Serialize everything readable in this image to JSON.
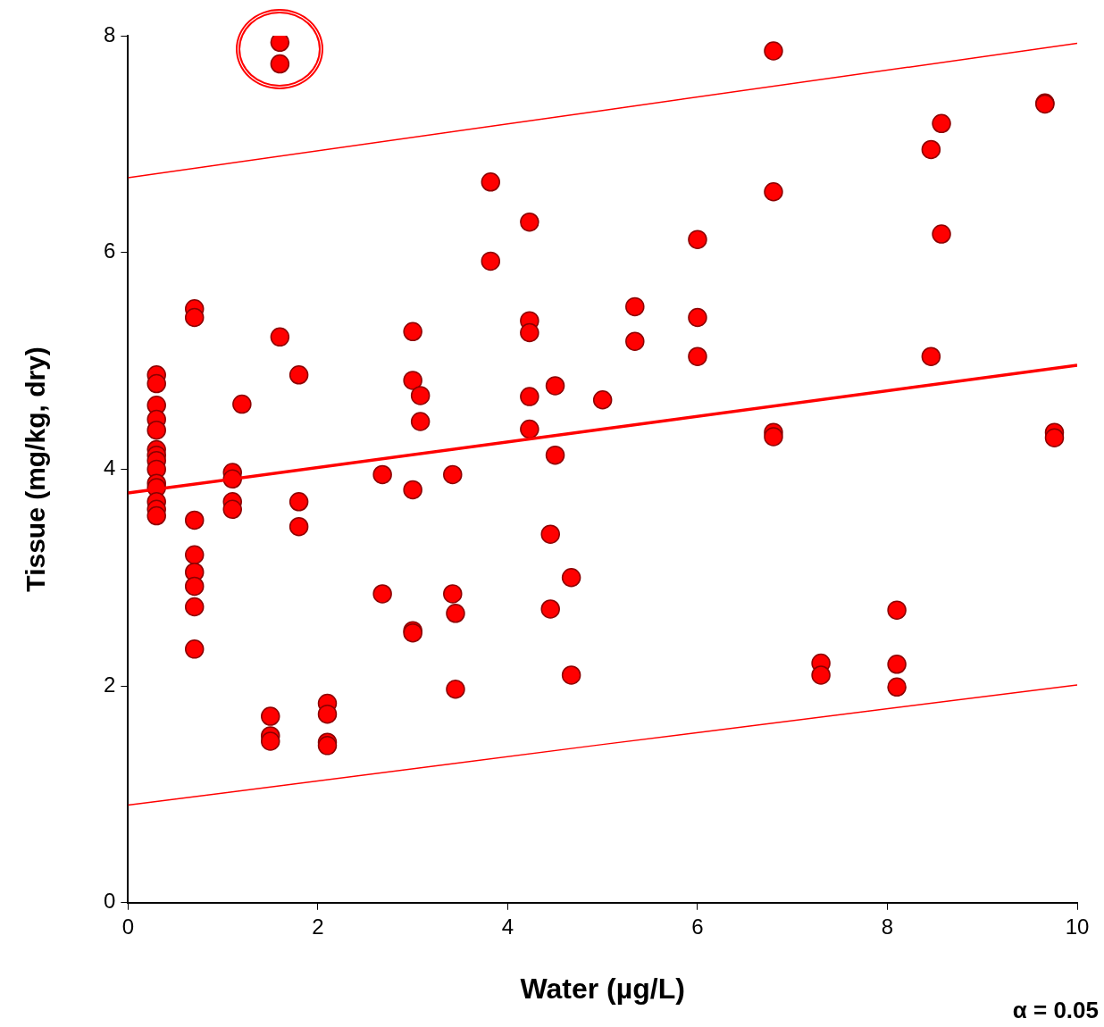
{
  "chart_data": {
    "type": "scatter",
    "xlabel": "Water (µg/L)",
    "ylabel": "Tissue (mg/kg, dry)",
    "xlim": [
      0,
      10
    ],
    "xticks": [
      0,
      2,
      4,
      6,
      8,
      10
    ],
    "ylim": [
      0,
      8
    ],
    "yticks": [
      0,
      2,
      4,
      6,
      8
    ],
    "grid": false,
    "legend": false,
    "marker": "circle",
    "annotations": [
      "α = 0.05"
    ],
    "series": [
      {
        "color": "#ff0000",
        "x": [
          0.3,
          0.3,
          0.3,
          0.3,
          0.3,
          0.3,
          0.3,
          0.3,
          0.3,
          0.3,
          0.3,
          0.3,
          0.3,
          0.3,
          0.7,
          0.7,
          0.7,
          0.7,
          0.7,
          0.7,
          0.7,
          0.7,
          1.1,
          1.1,
          1.1,
          1.1,
          1.2,
          1.5,
          1.5,
          1.5,
          1.6,
          1.6,
          1.6,
          1.8,
          1.8,
          1.8,
          2.1,
          2.1,
          2.1,
          2.1,
          2.68,
          2.68,
          3.0,
          3.0,
          3.0,
          3.0,
          3.0,
          3.08,
          3.08,
          3.42,
          3.42,
          3.45,
          3.45,
          3.82,
          3.82,
          4.23,
          4.23,
          4.23,
          4.23,
          4.23,
          4.45,
          4.45,
          4.5,
          4.5,
          4.67,
          4.67,
          5.0,
          5.34,
          5.34,
          6.0,
          6.0,
          6.0,
          6.8,
          6.8,
          6.8,
          6.8,
          7.3,
          7.3,
          8.1,
          8.1,
          8.1,
          8.46,
          8.46,
          8.57,
          8.57,
          9.66,
          9.66,
          9.76,
          9.76
        ],
        "values": [
          4.87,
          4.79,
          4.59,
          4.46,
          4.36,
          4.18,
          4.13,
          4.08,
          4.0,
          3.87,
          3.83,
          3.7,
          3.63,
          3.57,
          5.48,
          5.4,
          3.53,
          3.21,
          3.05,
          2.92,
          2.73,
          2.34,
          3.97,
          3.91,
          3.7,
          3.63,
          4.6,
          1.72,
          1.54,
          1.49,
          7.94,
          7.74,
          5.22,
          4.87,
          3.7,
          3.47,
          1.84,
          1.74,
          1.48,
          1.45,
          3.95,
          2.85,
          5.27,
          4.82,
          3.81,
          2.51,
          2.49,
          4.68,
          4.44,
          3.95,
          2.85,
          2.67,
          1.97,
          6.65,
          5.92,
          6.28,
          5.37,
          5.26,
          4.67,
          4.37,
          3.4,
          2.71,
          4.77,
          4.13,
          3.0,
          2.1,
          4.64,
          5.5,
          5.18,
          6.12,
          5.4,
          5.04,
          7.86,
          6.56,
          4.34,
          4.3,
          2.21,
          2.1,
          2.7,
          2.2,
          1.99,
          6.95,
          5.04,
          7.19,
          6.17,
          7.38,
          7.37,
          4.34,
          4.29
        ]
      },
      {
        "type": "line",
        "marker": "none",
        "color": "#ff0000",
        "x": [
          0,
          5,
          10
        ],
        "values": [
          3.78,
          4.37,
          4.96
        ]
      },
      {
        "type": "line",
        "marker": "none",
        "color": "#ff0000",
        "x": [
          0,
          5,
          10
        ],
        "values": [
          6.69,
          7.31,
          7.93
        ]
      },
      {
        "type": "line",
        "marker": "none",
        "color": "#ff0000",
        "x": [
          0,
          5,
          10
        ],
        "values": [
          0.9,
          1.46,
          2.01
        ]
      }
    ]
  }
}
